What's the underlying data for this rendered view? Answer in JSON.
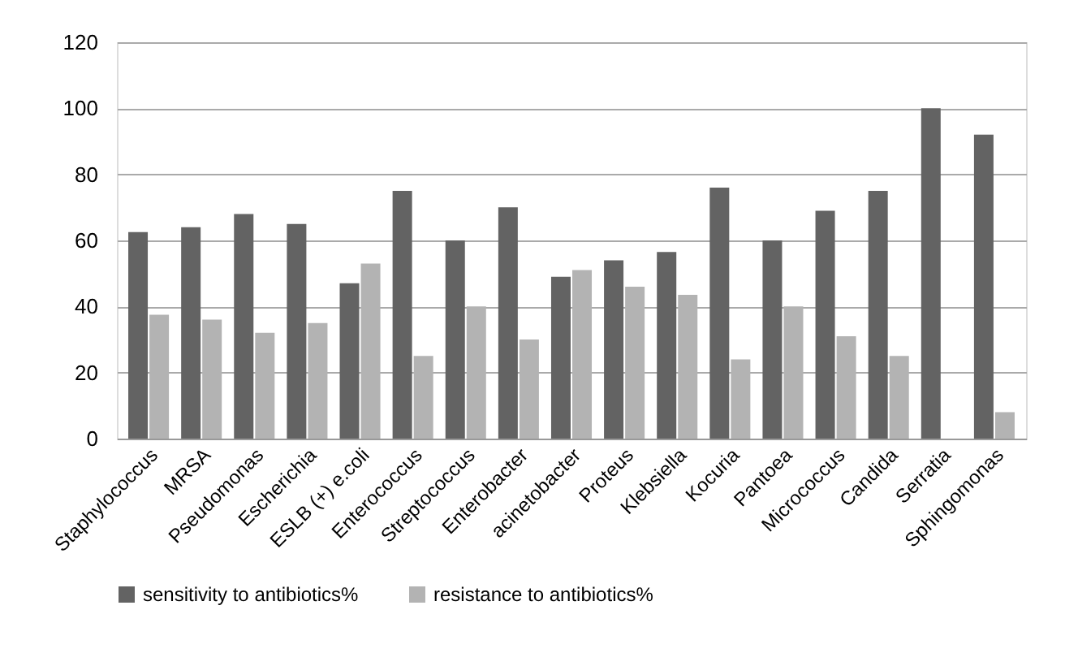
{
  "chart_data": {
    "type": "bar",
    "categories": [
      "Staphylococcus",
      "MRSA",
      "Pseudomonas",
      "Escherichia",
      "ESLB (+) e.coli",
      "Enterococcus",
      "Streptococcus",
      "Enterobacter",
      "acinetobacter",
      "Proteus",
      "Klebsiella",
      "Kocuria",
      "Pantoea",
      "Micrococcus",
      "Candida",
      "Serratia",
      "Sphingomonas"
    ],
    "series": [
      {
        "name": "sensitivity to antibiotics%",
        "color": "#636363",
        "values": [
          62.5,
          64,
          68,
          65,
          47,
          75,
          60,
          70,
          49,
          54,
          56.5,
          76,
          60,
          69,
          75,
          100,
          92
        ]
      },
      {
        "name": "resistance to antibiotics%",
        "color": "#b3b3b3",
        "values": [
          37.5,
          36,
          32,
          35,
          53,
          25,
          40,
          30,
          51,
          46,
          43.5,
          24,
          40,
          31,
          25,
          0,
          8
        ]
      }
    ],
    "ylim": [
      0,
      120
    ],
    "yticks": [
      0,
      20,
      40,
      60,
      80,
      100,
      120
    ],
    "grid": "y",
    "legend": "bottom"
  }
}
